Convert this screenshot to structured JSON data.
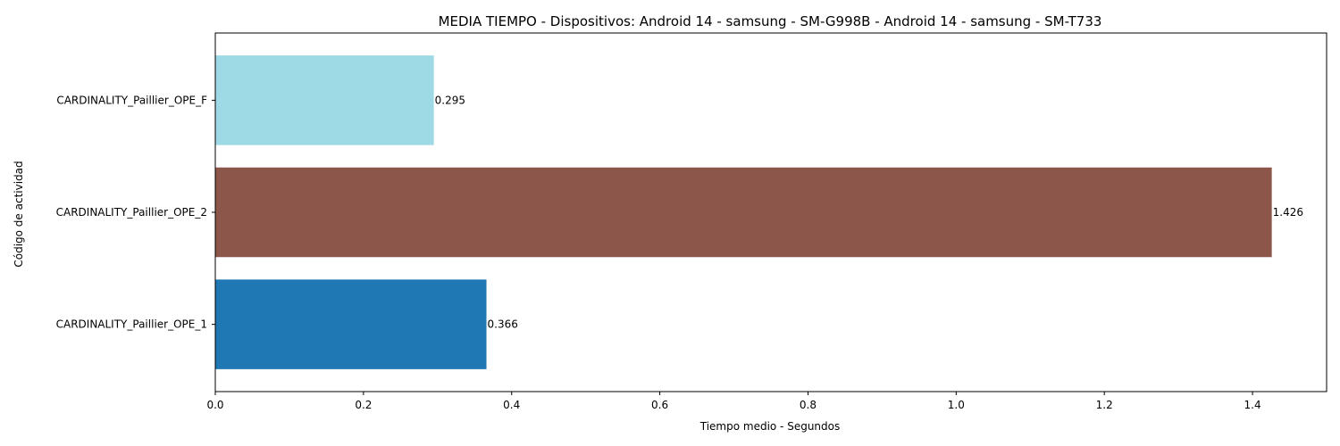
{
  "chart_data": {
    "type": "bar",
    "orientation": "horizontal",
    "title": "MEDIA TIEMPO - Dispositivos: Android 14 - samsung - SM-G998B - Android 14 - samsung - SM-T733",
    "xlabel": "Tiempo medio - Segundos",
    "ylabel": "Código de actividad",
    "xlim": [
      0,
      1.5
    ],
    "xticks": [
      0.0,
      0.2,
      0.4,
      0.6,
      0.8,
      1.0,
      1.2,
      1.4
    ],
    "xtick_labels": [
      "0.0",
      "0.2",
      "0.4",
      "0.6",
      "0.8",
      "1.0",
      "1.2",
      "1.4"
    ],
    "grid": false,
    "legend": "none",
    "categories": [
      "CARDINALITY_Paillier_OPE_1",
      "CARDINALITY_Paillier_OPE_2",
      "CARDINALITY_Paillier_OPE_F"
    ],
    "values": [
      0.366,
      1.426,
      0.295
    ],
    "value_labels": [
      "0.366",
      "1.426",
      "0.295"
    ],
    "colors": [
      "#1f77b4",
      "#8c564b",
      "#9edae5"
    ]
  }
}
